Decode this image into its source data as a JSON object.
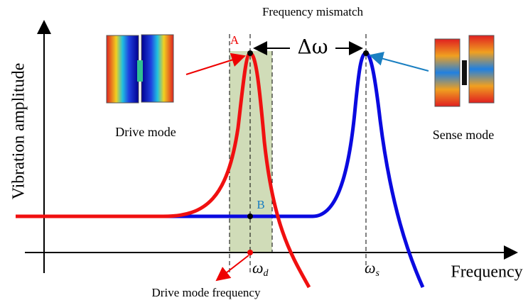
{
  "header": {
    "title": "Frequency mismatch",
    "delta": "Δω"
  },
  "axes": {
    "y_label": "Vibration amplitude",
    "x_label": "Frequency"
  },
  "points": {
    "a": "A",
    "b": "B"
  },
  "modes": {
    "drive": "Drive mode",
    "sense": "Sense mode"
  },
  "frequencies": {
    "drive": {
      "symbol": "ω",
      "subscript": "d"
    },
    "sense": {
      "symbol": "ω",
      "subscript": "s"
    },
    "drive_note": "Drive mode frequency"
  }
}
